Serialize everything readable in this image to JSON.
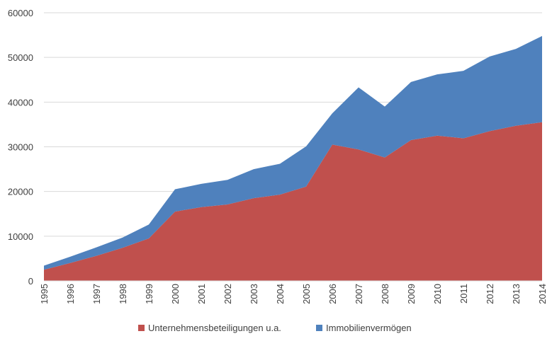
{
  "chart_data": {
    "type": "area",
    "stacked": true,
    "x": [
      "1995",
      "1996",
      "1997",
      "1998",
      "1999",
      "2000",
      "2001",
      "2002",
      "2003",
      "2004",
      "2005",
      "2006",
      "2007",
      "2008",
      "2009",
      "2010",
      "2011",
      "2012",
      "2013",
      "2014"
    ],
    "series": [
      {
        "name": "Unternehmensbeteiligungen u.a.",
        "color": "#c0504d",
        "values": [
          2500,
          4000,
          5600,
          7400,
          9500,
          15500,
          16500,
          17100,
          18500,
          19300,
          21100,
          30500,
          29400,
          27600,
          31500,
          32500,
          31900,
          33500,
          34700,
          35500
        ]
      },
      {
        "name": "Immobilienvermögen",
        "color": "#4f81bd",
        "values": [
          900,
          1400,
          1900,
          2300,
          3100,
          5000,
          5200,
          5500,
          6500,
          6900,
          9000,
          7000,
          13900,
          11400,
          13000,
          13700,
          15100,
          16700,
          17200,
          19300
        ]
      }
    ],
    "ylim": [
      0,
      60000
    ],
    "yticks": [
      "0",
      "10000",
      "20000",
      "30000",
      "40000",
      "50000",
      "60000"
    ],
    "grid": true,
    "legend_position": "bottom",
    "title": "",
    "xlabel": "",
    "ylabel": ""
  }
}
